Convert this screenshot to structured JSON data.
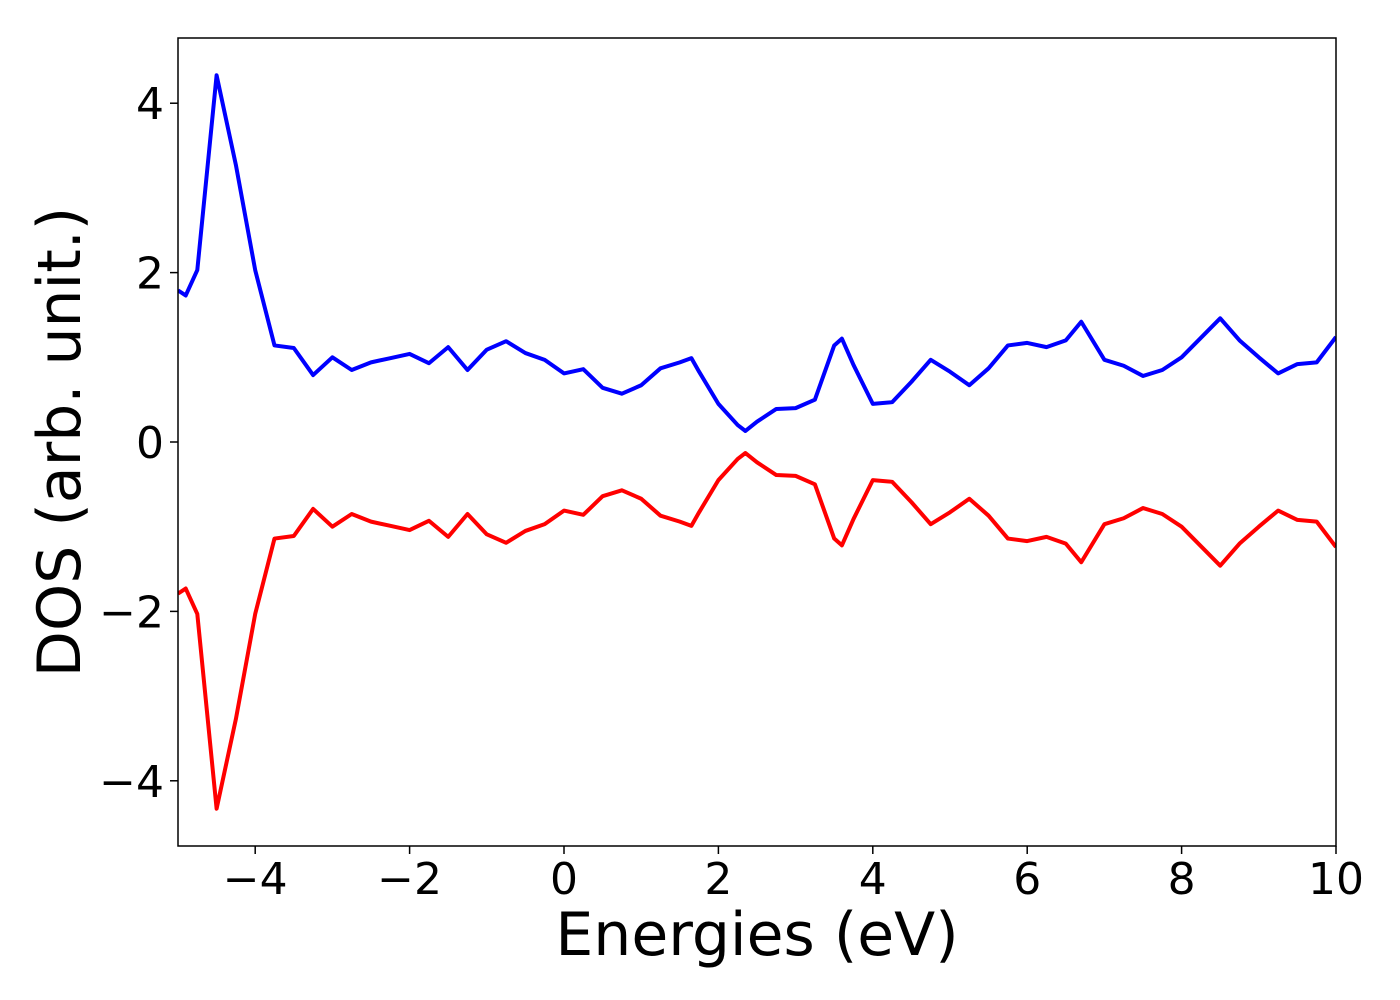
{
  "chart_data": {
    "type": "line",
    "xlabel": "Energies (eV)",
    "ylabel": "DOS (arb. unit.)",
    "x": [
      -5,
      -4.9,
      -4.75,
      -4.5,
      -4.25,
      -4,
      -3.75,
      -3.5,
      -3.25,
      -3,
      -2.75,
      -2.5,
      -2.25,
      -2,
      -1.75,
      -1.5,
      -1.25,
      -1,
      -0.75,
      -0.5,
      -0.25,
      0,
      0.25,
      0.5,
      0.75,
      1,
      1.25,
      1.5,
      1.65,
      1.75,
      2,
      2.25,
      2.35,
      2.5,
      2.75,
      3,
      3.25,
      3.5,
      3.6,
      3.75,
      4,
      4.25,
      4.5,
      4.75,
      5,
      5.25,
      5.5,
      5.75,
      6,
      6.25,
      6.5,
      6.7,
      7,
      7.25,
      7.5,
      7.75,
      8,
      8.25,
      8.5,
      8.75,
      9,
      9.25,
      9.5,
      9.75,
      10
    ],
    "series": [
      {
        "color": "#0000ff",
        "values": [
          1.79,
          1.73,
          2.03,
          4.33,
          3.27,
          2.03,
          1.14,
          1.11,
          0.79,
          1.0,
          0.85,
          0.94,
          0.99,
          1.04,
          0.93,
          1.12,
          0.85,
          1.09,
          1.19,
          1.05,
          0.97,
          0.81,
          0.86,
          0.64,
          0.57,
          0.67,
          0.87,
          0.94,
          0.99,
          0.83,
          0.45,
          0.2,
          0.13,
          0.24,
          0.39,
          0.4,
          0.5,
          1.14,
          1.22,
          0.91,
          0.45,
          0.47,
          0.71,
          0.97,
          0.83,
          0.67,
          0.87,
          1.14,
          1.17,
          1.12,
          1.2,
          1.42,
          0.97,
          0.9,
          0.78,
          0.85,
          1.0,
          1.23,
          1.46,
          1.2,
          1.0,
          0.81,
          0.92,
          0.94,
          1.24
        ]
      },
      {
        "color": "#ff0000",
        "values": [
          -1.79,
          -1.73,
          -2.03,
          -4.33,
          -3.27,
          -2.03,
          -1.14,
          -1.11,
          -0.79,
          -1.0,
          -0.85,
          -0.94,
          -0.99,
          -1.04,
          -0.93,
          -1.12,
          -0.85,
          -1.09,
          -1.19,
          -1.05,
          -0.97,
          -0.81,
          -0.86,
          -0.64,
          -0.57,
          -0.67,
          -0.87,
          -0.94,
          -0.99,
          -0.83,
          -0.45,
          -0.2,
          -0.13,
          -0.24,
          -0.39,
          -0.4,
          -0.5,
          -1.14,
          -1.22,
          -0.91,
          -0.45,
          -0.47,
          -0.71,
          -0.97,
          -0.83,
          -0.67,
          -0.87,
          -1.14,
          -1.17,
          -1.12,
          -1.2,
          -1.42,
          -0.97,
          -0.9,
          -0.78,
          -0.85,
          -1.0,
          -1.23,
          -1.46,
          -1.2,
          -1.0,
          -0.81,
          -0.92,
          -0.94,
          -1.24
        ]
      }
    ],
    "xlim": [
      -5,
      10
    ],
    "ylim": [
      -4.77,
      4.77
    ],
    "xticks": [
      {
        "value": -4,
        "label": "−4"
      },
      {
        "value": -2,
        "label": "−2"
      },
      0,
      2,
      4,
      6,
      8,
      10
    ],
    "yticks": [
      {
        "value": -4,
        "label": "−4"
      },
      {
        "value": -2,
        "label": "−2"
      },
      0,
      2,
      4
    ],
    "grid": false
  }
}
